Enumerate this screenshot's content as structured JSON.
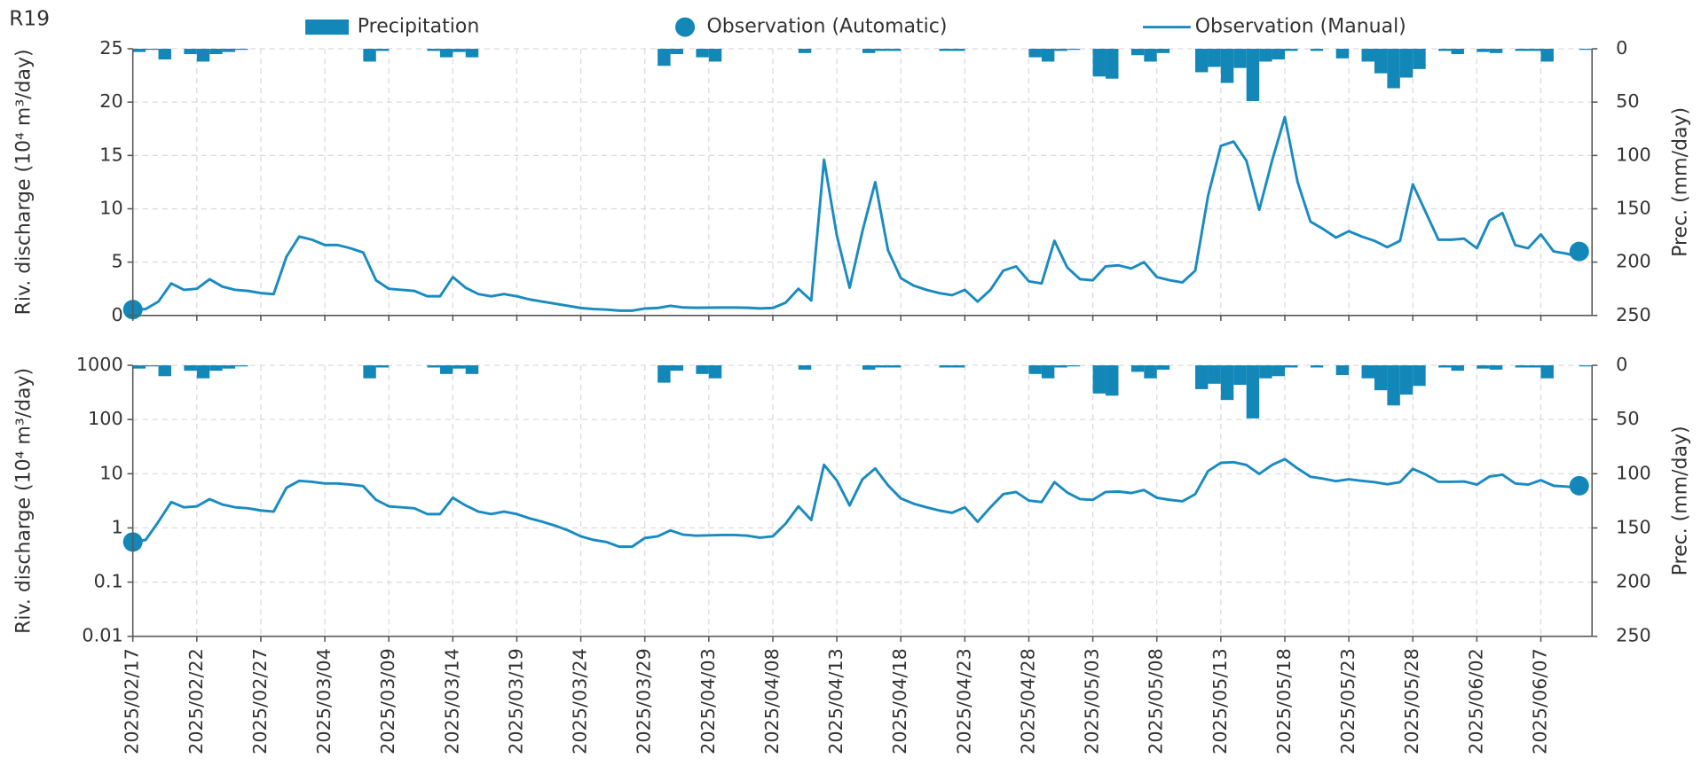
{
  "chart_data": {
    "type": "combo",
    "title": "R19",
    "x": [
      "2025/02/17",
      "2025/02/18",
      "2025/02/19",
      "2025/02/20",
      "2025/02/21",
      "2025/02/22",
      "2025/02/23",
      "2025/02/24",
      "2025/02/25",
      "2025/02/26",
      "2025/02/27",
      "2025/02/28",
      "2025/03/01",
      "2025/03/02",
      "2025/03/03",
      "2025/03/04",
      "2025/03/05",
      "2025/03/06",
      "2025/03/07",
      "2025/03/08",
      "2025/03/09",
      "2025/03/10",
      "2025/03/11",
      "2025/03/12",
      "2025/03/13",
      "2025/03/14",
      "2025/03/15",
      "2025/03/16",
      "2025/03/17",
      "2025/03/18",
      "2025/03/19",
      "2025/03/20",
      "2025/03/21",
      "2025/03/22",
      "2025/03/23",
      "2025/03/24",
      "2025/03/25",
      "2025/03/26",
      "2025/03/27",
      "2025/03/28",
      "2025/03/29",
      "2025/03/30",
      "2025/03/31",
      "2025/04/01",
      "2025/04/02",
      "2025/04/03",
      "2025/04/04",
      "2025/04/05",
      "2025/04/06",
      "2025/04/07",
      "2025/04/08",
      "2025/04/09",
      "2025/04/10",
      "2025/04/11",
      "2025/04/12",
      "2025/04/13",
      "2025/04/14",
      "2025/04/15",
      "2025/04/16",
      "2025/04/17",
      "2025/04/18",
      "2025/04/19",
      "2025/04/20",
      "2025/04/21",
      "2025/04/22",
      "2025/04/23",
      "2025/04/24",
      "2025/04/25",
      "2025/04/26",
      "2025/04/27",
      "2025/04/28",
      "2025/04/29",
      "2025/04/30",
      "2025/05/01",
      "2025/05/02",
      "2025/05/03",
      "2025/05/04",
      "2025/05/05",
      "2025/05/06",
      "2025/05/07",
      "2025/05/08",
      "2025/05/09",
      "2025/05/10",
      "2025/05/11",
      "2025/05/12",
      "2025/05/13",
      "2025/05/14",
      "2025/05/15",
      "2025/05/16",
      "2025/05/17",
      "2025/05/18",
      "2025/05/19",
      "2025/05/20",
      "2025/05/21",
      "2025/05/22",
      "2025/05/23",
      "2025/05/24",
      "2025/05/25",
      "2025/05/26",
      "2025/05/27",
      "2025/05/28",
      "2025/05/29",
      "2025/05/30",
      "2025/05/31",
      "2025/06/01",
      "2025/06/02",
      "2025/06/03",
      "2025/06/04",
      "2025/06/05",
      "2025/06/06",
      "2025/06/07",
      "2025/06/08",
      "2025/06/09",
      "2025/06/10"
    ],
    "xlim": [
      "2025/02/17",
      "2025/06/11"
    ],
    "xticks": [
      "2025/02/17",
      "2025/02/22",
      "2025/02/27",
      "2025/03/04",
      "2025/03/09",
      "2025/03/14",
      "2025/03/19",
      "2025/03/24",
      "2025/03/29",
      "2025/04/03",
      "2025/04/08",
      "2025/04/13",
      "2025/04/18",
      "2025/04/23",
      "2025/04/28",
      "2025/05/03",
      "2025/05/08",
      "2025/05/13",
      "2025/05/18",
      "2025/05/23",
      "2025/05/28",
      "2025/06/02",
      "2025/06/07"
    ],
    "grid": true,
    "legend": "top",
    "series": [
      {
        "name": "Precipitation",
        "type": "bar",
        "axis": "y2",
        "color": "#1287b8",
        "values": [
          3,
          1,
          10,
          0,
          5,
          12,
          5,
          3,
          1,
          0,
          0,
          0,
          0,
          0,
          0,
          0,
          0,
          0,
          12,
          2,
          0,
          0,
          0,
          2,
          8,
          3,
          8,
          0,
          0,
          0,
          0,
          0,
          0,
          0,
          0,
          0,
          0,
          0,
          0,
          0,
          0,
          16,
          5,
          0,
          8,
          12,
          0,
          0,
          0,
          0,
          0,
          0,
          4,
          0,
          0,
          0,
          0,
          4,
          2,
          2,
          0,
          0,
          0,
          2,
          2,
          0,
          0,
          0,
          0,
          0,
          8,
          12,
          2,
          1,
          0,
          26,
          28,
          0,
          6,
          12,
          4,
          0,
          0,
          22,
          17,
          32,
          18,
          49,
          12,
          10,
          2,
          0,
          2,
          0,
          9,
          0,
          12,
          23,
          37,
          27,
          19,
          0,
          2,
          5,
          0,
          3,
          4,
          0,
          2,
          2,
          12,
          0,
          0,
          1
        ]
      },
      {
        "name": "Observation (Automatic)",
        "type": "scatter",
        "color": "#1287b8",
        "x": [
          "2025/02/17",
          "2025/06/10"
        ],
        "values": [
          0.55,
          6.0
        ]
      },
      {
        "name": "Observation (Manual)",
        "type": "line",
        "color": "#1a8bc0",
        "values": [
          0.55,
          0.6,
          1.3,
          3.0,
          2.4,
          2.5,
          3.4,
          2.7,
          2.4,
          2.3,
          2.1,
          2.0,
          5.5,
          7.4,
          7.1,
          6.6,
          6.6,
          6.3,
          5.9,
          3.3,
          2.5,
          2.4,
          2.3,
          1.8,
          1.8,
          3.6,
          2.6,
          2.0,
          1.8,
          2.0,
          1.8,
          1.5,
          1.3,
          1.1,
          0.9,
          0.7,
          0.6,
          0.55,
          0.45,
          0.45,
          0.65,
          0.7,
          0.9,
          0.75,
          0.72,
          0.73,
          0.74,
          0.74,
          0.72,
          0.66,
          0.7,
          1.2,
          2.5,
          1.4,
          14.6,
          7.5,
          2.6,
          7.9,
          12.5,
          6.1,
          3.5,
          2.8,
          2.4,
          2.1,
          1.9,
          2.4,
          1.3,
          2.4,
          4.2,
          4.6,
          3.2,
          3.0,
          7.0,
          4.5,
          3.4,
          3.3,
          4.6,
          4.7,
          4.4,
          5.0,
          3.6,
          3.3,
          3.1,
          4.2,
          11.2,
          15.9,
          16.3,
          14.5,
          9.9,
          14.5,
          18.6,
          12.5,
          8.8,
          8.1,
          7.3,
          7.9,
          7.4,
          7.0,
          6.4,
          7.0,
          12.3,
          9.7,
          7.1,
          7.1,
          7.2,
          6.3,
          8.9,
          9.6,
          6.6,
          6.3,
          7.6,
          6.0,
          5.8,
          5.5
        ]
      }
    ],
    "panels": [
      {
        "ylabel": "Riv. discharge (10⁴ m³/day)",
        "yscale": "linear",
        "ylim": [
          0,
          25
        ],
        "yticks": [
          0,
          5,
          10,
          15,
          20,
          25
        ],
        "y2label": "Prec. (mm/day)",
        "y2lim": [
          0,
          250
        ],
        "y2ticks": [
          0,
          50,
          100,
          150,
          200,
          250
        ],
        "y2inverted": true
      },
      {
        "ylabel": "Riv. discharge (10⁴ m³/day)",
        "yscale": "log",
        "ylim": [
          0.01,
          1000
        ],
        "yticks": [
          0.01,
          0.1,
          1,
          10,
          100,
          1000
        ],
        "y2label": "Prec. (mm/day)",
        "y2lim": [
          0,
          250
        ],
        "y2ticks": [
          0,
          50,
          100,
          150,
          200,
          250
        ],
        "y2inverted": true
      }
    ]
  }
}
